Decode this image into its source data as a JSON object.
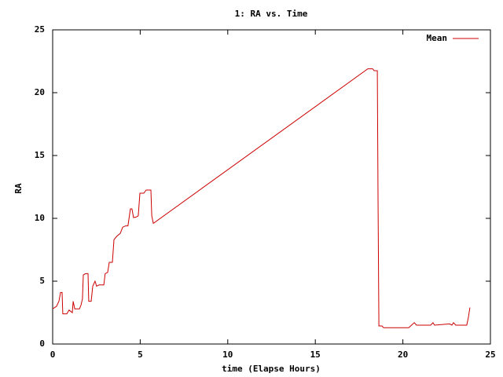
{
  "chart_data": {
    "type": "line",
    "title": "1: RA vs. Time",
    "x_label": "time (Elapse Hours)",
    "y_label": "RA",
    "x": [
      0,
      0.22,
      0.36,
      0.45,
      0.54,
      0.58,
      0.81,
      0.94,
      1.12,
      1.17,
      1.26,
      1.53,
      1.62,
      1.7,
      1.75,
      1.88,
      2.02,
      2.06,
      2.2,
      2.29,
      2.42,
      2.51,
      2.65,
      2.92,
      3.0,
      3.14,
      3.23,
      3.41,
      3.5,
      3.68,
      3.86,
      4.0,
      4.17,
      4.3,
      4.44,
      4.53,
      4.62,
      4.76,
      4.89,
      4.98,
      5.2,
      5.34,
      5.61,
      5.66,
      5.75,
      18.0,
      18.27,
      18.36,
      18.54,
      18.58,
      18.63,
      18.8,
      18.9,
      20.33,
      20.65,
      20.78,
      21.59,
      21.72,
      21.81,
      22.67,
      22.8,
      22.89,
      23.02,
      23.65,
      23.74,
      23.83
    ],
    "series": [
      {
        "name": "Mean",
        "color": "#cc0000",
        "values": [
          2.8,
          3.0,
          3.4,
          4.1,
          4.1,
          2.4,
          2.4,
          2.7,
          2.5,
          3.4,
          2.8,
          2.8,
          3.1,
          3.6,
          5.5,
          5.6,
          5.6,
          3.4,
          3.4,
          4.6,
          5.0,
          4.6,
          4.7,
          4.7,
          5.6,
          5.7,
          6.5,
          6.5,
          8.3,
          8.6,
          8.8,
          9.3,
          9.4,
          9.4,
          10.75,
          10.75,
          10.06,
          10.1,
          10.2,
          12.0,
          12.0,
          12.25,
          12.25,
          10.2,
          9.6,
          21.9,
          21.9,
          21.75,
          21.75,
          11.6,
          1.44,
          1.44,
          1.3,
          1.3,
          1.7,
          1.5,
          1.5,
          1.7,
          1.5,
          1.6,
          1.5,
          1.7,
          1.5,
          1.5,
          2.1,
          2.9
        ]
      }
    ],
    "xlim": [
      0,
      25
    ],
    "xticks": [
      0,
      5,
      10,
      15,
      20,
      25
    ],
    "ylim": [
      0,
      25
    ],
    "yticks": [
      0,
      5,
      10,
      15,
      20,
      25
    ],
    "legend": "top-right"
  }
}
